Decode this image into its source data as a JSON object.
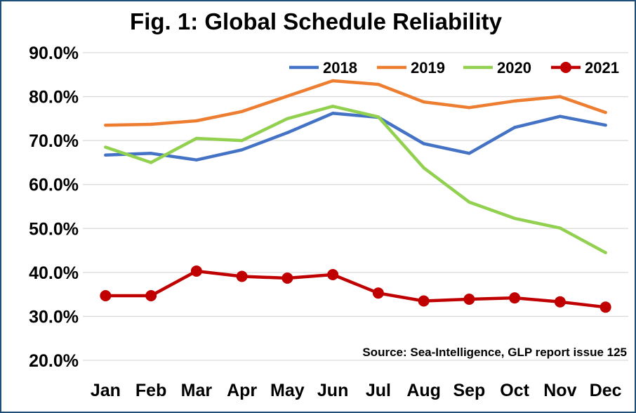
{
  "chart_data": {
    "type": "line",
    "title": "Fig. 1: Global Schedule Reliability",
    "categories": [
      "Jan",
      "Feb",
      "Mar",
      "Apr",
      "May",
      "Jun",
      "Jul",
      "Aug",
      "Sep",
      "Oct",
      "Nov",
      "Dec"
    ],
    "y_ticks": [
      "20.0%",
      "30.0%",
      "40.0%",
      "50.0%",
      "60.0%",
      "70.0%",
      "80.0%",
      "90.0%"
    ],
    "ylim": [
      20,
      90
    ],
    "grid": true,
    "legend_position": "top-right",
    "source": "Source: Sea-Intelligence, GLP report issue 125",
    "series": [
      {
        "name": "2018",
        "color": "#4472c4",
        "markers": false,
        "values": [
          66.7,
          67.1,
          65.6,
          67.9,
          71.8,
          76.2,
          75.3,
          69.3,
          67.1,
          73.0,
          75.5,
          73.5
        ]
      },
      {
        "name": "2019",
        "color": "#ed7d31",
        "markers": false,
        "values": [
          73.5,
          73.7,
          74.5,
          76.6,
          80.1,
          83.6,
          82.8,
          78.8,
          77.5,
          79.0,
          80.0,
          76.4
        ]
      },
      {
        "name": "2020",
        "color": "#92d050",
        "markers": false,
        "values": [
          68.5,
          65.0,
          70.5,
          70.0,
          75.0,
          77.8,
          75.4,
          63.8,
          56.0,
          52.3,
          50.1,
          44.5
        ]
      },
      {
        "name": "2021",
        "color": "#c00000",
        "markers": true,
        "values": [
          34.7,
          34.7,
          40.3,
          39.1,
          38.7,
          39.5,
          35.3,
          33.5,
          33.9,
          34.2,
          33.3,
          32.1
        ]
      }
    ]
  }
}
